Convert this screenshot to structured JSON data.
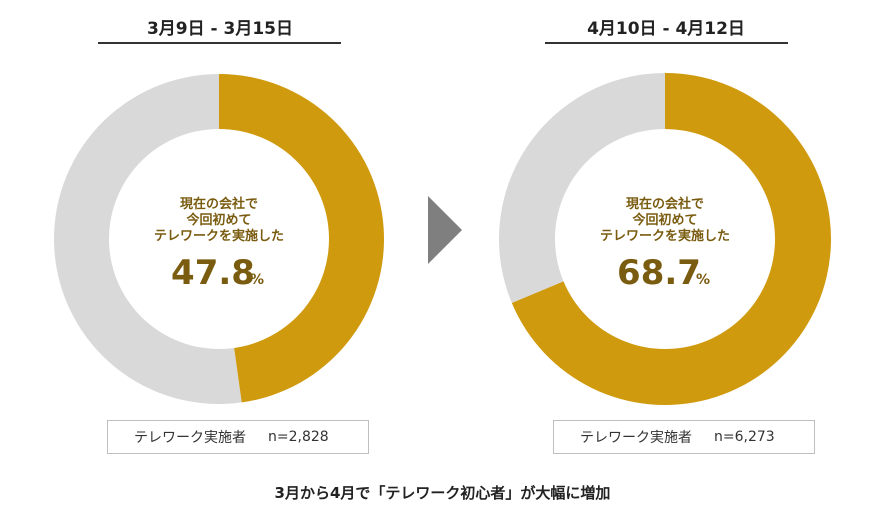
{
  "chart_data": [
    {
      "type": "pie",
      "title": "3月9日 - 3月15日",
      "center_label_lines": [
        "現在の会社で",
        "今回初めて",
        "テレワークを実施した"
      ],
      "value": 47.8,
      "value_text": "47.8",
      "unit": "%",
      "sample_label": "テレワーク実施者",
      "sample_size": "n=2,828",
      "colors": {
        "highlight": "#D09A0E",
        "rest": "#D9D9D9",
        "text": "#7A5C10"
      }
    },
    {
      "type": "pie",
      "title": "4月10日 - 4月12日",
      "center_label_lines": [
        "現在の会社で",
        "今回初めて",
        "テレワークを実施した"
      ],
      "value": 68.7,
      "value_text": "68.7",
      "unit": "%",
      "sample_label": "テレワーク実施者",
      "sample_size": "n=6,273",
      "colors": {
        "highlight": "#D09A0E",
        "rest": "#D9D9D9",
        "text": "#7A5C10"
      }
    }
  ],
  "arrow": {
    "icon": "right-triangle-icon",
    "color": "#7F7F7F"
  },
  "footer": "3月から4月で「テレワーク初心者」が大幅に増加"
}
